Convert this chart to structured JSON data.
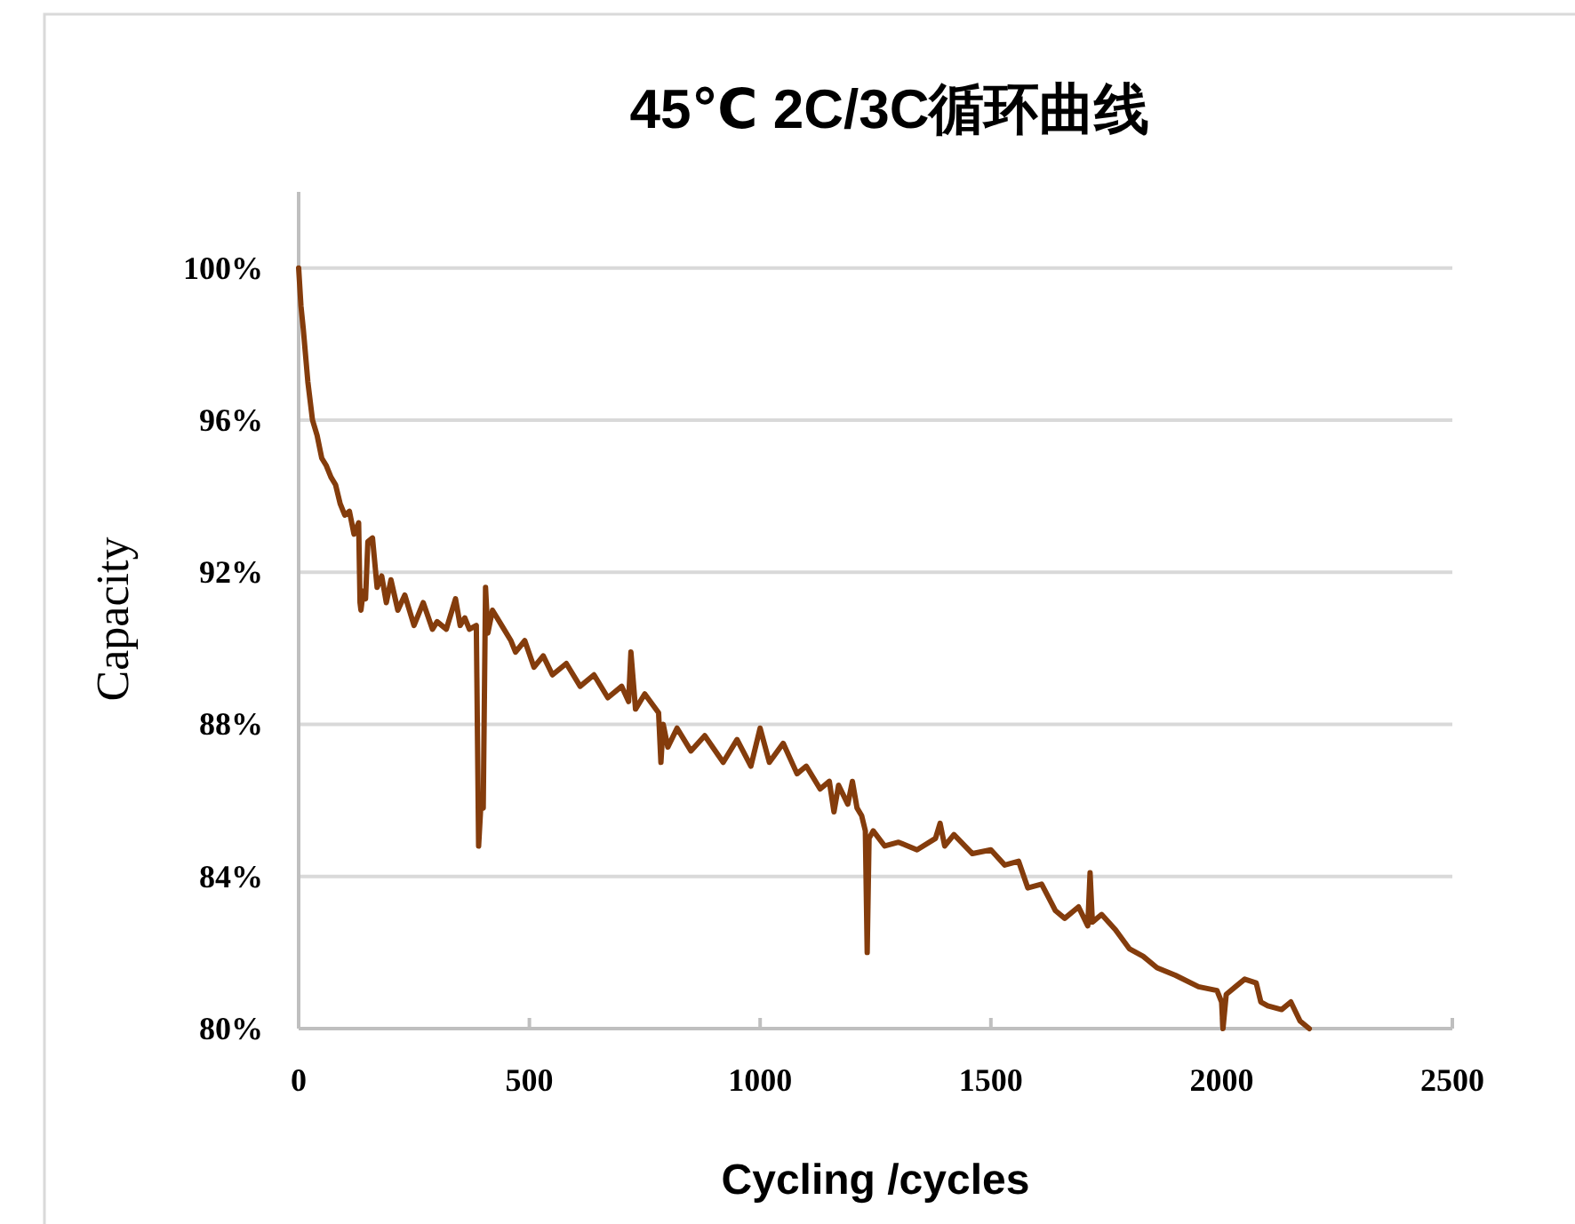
{
  "chart_data": {
    "type": "line",
    "title": "45℃ 2C/3C循环曲线",
    "xlabel": "Cycling /cycles",
    "ylabel": "Capacity",
    "xlim": [
      0,
      2500
    ],
    "xticks": [
      0,
      500,
      1000,
      1500,
      2000,
      2500
    ],
    "ylim": [
      80,
      102
    ],
    "yticks": [
      {
        "value": 80,
        "label": "80%"
      },
      {
        "value": 84,
        "label": "84%"
      },
      {
        "value": 88,
        "label": "88%"
      },
      {
        "value": 92,
        "label": "92%"
      },
      {
        "value": 96,
        "label": "96%"
      },
      {
        "value": 100,
        "label": "100%"
      }
    ],
    "grid": "y",
    "marker": "none",
    "line_style": "solid",
    "series": [
      {
        "color": "#843c0c",
        "x": [
          0,
          5,
          10,
          20,
          30,
          40,
          50,
          60,
          70,
          80,
          90,
          100,
          110,
          120,
          130,
          133,
          135,
          140,
          145,
          150,
          160,
          170,
          180,
          190,
          200,
          215,
          230,
          250,
          270,
          290,
          300,
          320,
          340,
          350,
          360,
          370,
          385,
          390,
          395,
          400,
          405,
          410,
          420,
          440,
          460,
          470,
          490,
          510,
          530,
          550,
          580,
          610,
          640,
          670,
          700,
          715,
          720,
          730,
          750,
          780,
          785,
          790,
          800,
          820,
          850,
          880,
          920,
          950,
          980,
          1000,
          1020,
          1050,
          1080,
          1100,
          1130,
          1150,
          1160,
          1170,
          1190,
          1200,
          1210,
          1220,
          1228,
          1232,
          1236,
          1245,
          1270,
          1300,
          1340,
          1380,
          1390,
          1400,
          1420,
          1460,
          1500,
          1530,
          1560,
          1580,
          1610,
          1640,
          1660,
          1690,
          1710,
          1715,
          1720,
          1740,
          1770,
          1800,
          1830,
          1860,
          1900,
          1950,
          1990,
          2000,
          2003,
          2010,
          2030,
          2050,
          2075,
          2085,
          2100,
          2130,
          2150,
          2170,
          2190
        ],
        "values": [
          100,
          99,
          98.4,
          97,
          96,
          95.6,
          95,
          94.8,
          94.5,
          94.3,
          93.8,
          93.5,
          93.6,
          93.0,
          93.3,
          91.2,
          91.0,
          91.5,
          91.3,
          92.8,
          92.9,
          91.6,
          91.9,
          91.2,
          91.8,
          91.0,
          91.4,
          90.6,
          91.2,
          90.5,
          90.7,
          90.5,
          91.3,
          90.6,
          90.8,
          90.5,
          90.6,
          84.8,
          85.9,
          85.8,
          91.6,
          90.4,
          91.0,
          90.6,
          90.2,
          89.9,
          90.2,
          89.5,
          89.8,
          89.3,
          89.6,
          89.0,
          89.3,
          88.7,
          89.0,
          88.6,
          89.9,
          88.4,
          88.8,
          88.3,
          87.0,
          88.0,
          87.4,
          87.9,
          87.3,
          87.7,
          87.0,
          87.6,
          86.9,
          87.9,
          87.0,
          87.5,
          86.7,
          86.9,
          86.3,
          86.5,
          85.7,
          86.4,
          85.9,
          86.5,
          85.8,
          85.6,
          85.2,
          82.0,
          85.0,
          85.2,
          84.8,
          84.9,
          84.7,
          85.0,
          85.4,
          84.8,
          85.1,
          84.6,
          84.7,
          84.3,
          84.4,
          83.7,
          83.8,
          83.1,
          82.9,
          83.2,
          82.7,
          84.1,
          82.8,
          83.0,
          82.6,
          82.1,
          81.9,
          81.6,
          81.4,
          81.1,
          81.0,
          80.7,
          80.0,
          80.9,
          81.1,
          81.3,
          81.2,
          80.7,
          80.6,
          80.5,
          80.7,
          80.2,
          80.0
        ]
      }
    ]
  }
}
